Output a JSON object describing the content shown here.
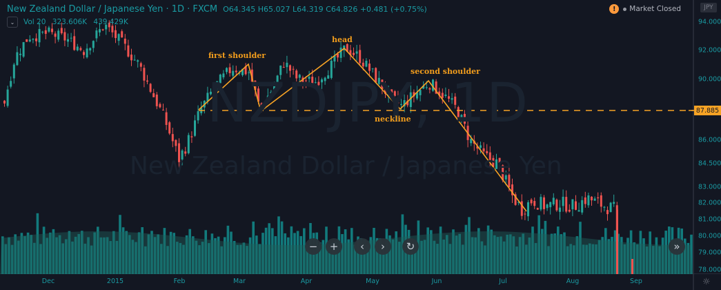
{
  "header": {
    "title": "New Zealand Dollar / Japanese Yen · 1D · FXCM",
    "ohlc": {
      "open": "O64.345",
      "high": "H65.027",
      "low": "L64.319",
      "close": "C64.826",
      "change": "+0.481 (+0.75%)"
    },
    "volume_label": "Vol 20",
    "volume_values": [
      "323.606K",
      "439.429K"
    ],
    "market_status": "Market Closed",
    "currency": "JPY"
  },
  "watermark": {
    "symbol": "NZDJPY, 1D",
    "name": "New Zealand Dollar / Japanese Yen"
  },
  "annotations": {
    "first_shoulder": "first shoulder",
    "head": "head",
    "second_shoulder": "second shoulder",
    "neckline": "neckline"
  },
  "price_tag": "87.885",
  "colors": {
    "up": "#26a69a",
    "down": "#ef5350",
    "pattern": "#f7a325",
    "volume": "#138c8c",
    "background": "#131722",
    "axis_text": "#1a9ba3"
  },
  "nav": {
    "zoom_out": "−",
    "zoom_in": "+",
    "scroll_left": "‹",
    "scroll_right": "›",
    "reset": "↻",
    "jump_latest": "»"
  },
  "settings_icon": "☼",
  "chart_data": {
    "type": "candlestick",
    "title": "New Zealand Dollar / Japanese Yen · 1D · FXCM",
    "xlabel": "",
    "ylabel": "JPY",
    "x_ticks": [
      "Dec",
      "2015",
      "Feb",
      "Mar",
      "Apr",
      "May",
      "Jun",
      "Jul",
      "Aug",
      "Sep"
    ],
    "y_ticks": [
      94.0,
      92.0,
      90.0,
      86.0,
      84.5,
      83.0,
      82.0,
      81.0,
      80.0,
      79.0,
      78.0
    ],
    "ylim": [
      78.0,
      94.5
    ],
    "neckline": 87.885,
    "pattern": "head and shoulders",
    "pattern_points": [
      {
        "label": "start",
        "month": "Feb",
        "price": 88.0
      },
      {
        "label": "first shoulder",
        "month": "Mar",
        "price": 91.2
      },
      {
        "label": "left trough",
        "month": "Mar",
        "price": 87.9
      },
      {
        "label": "head",
        "month": "Apr",
        "price": 92.3
      },
      {
        "label": "right trough",
        "month": "May",
        "price": 87.9
      },
      {
        "label": "second shoulder",
        "month": "Jun",
        "price": 90.0
      },
      {
        "label": "breakdown end",
        "month": "Jul",
        "price": 81.7
      }
    ],
    "approx_closes_by_month": {
      "Dec": 93.0,
      "2015": 93.5,
      "Feb": 85.0,
      "Mar": 90.0,
      "Apr": 91.0,
      "May": 89.0,
      "Jun": 88.0,
      "Jul": 81.5,
      "Aug": 81.8,
      "Sep": 78.5
    },
    "volume_series": {
      "name": "Vol 20",
      "values": [
        "323.606K",
        "439.429K"
      ]
    },
    "grid": false,
    "legend": "none"
  }
}
